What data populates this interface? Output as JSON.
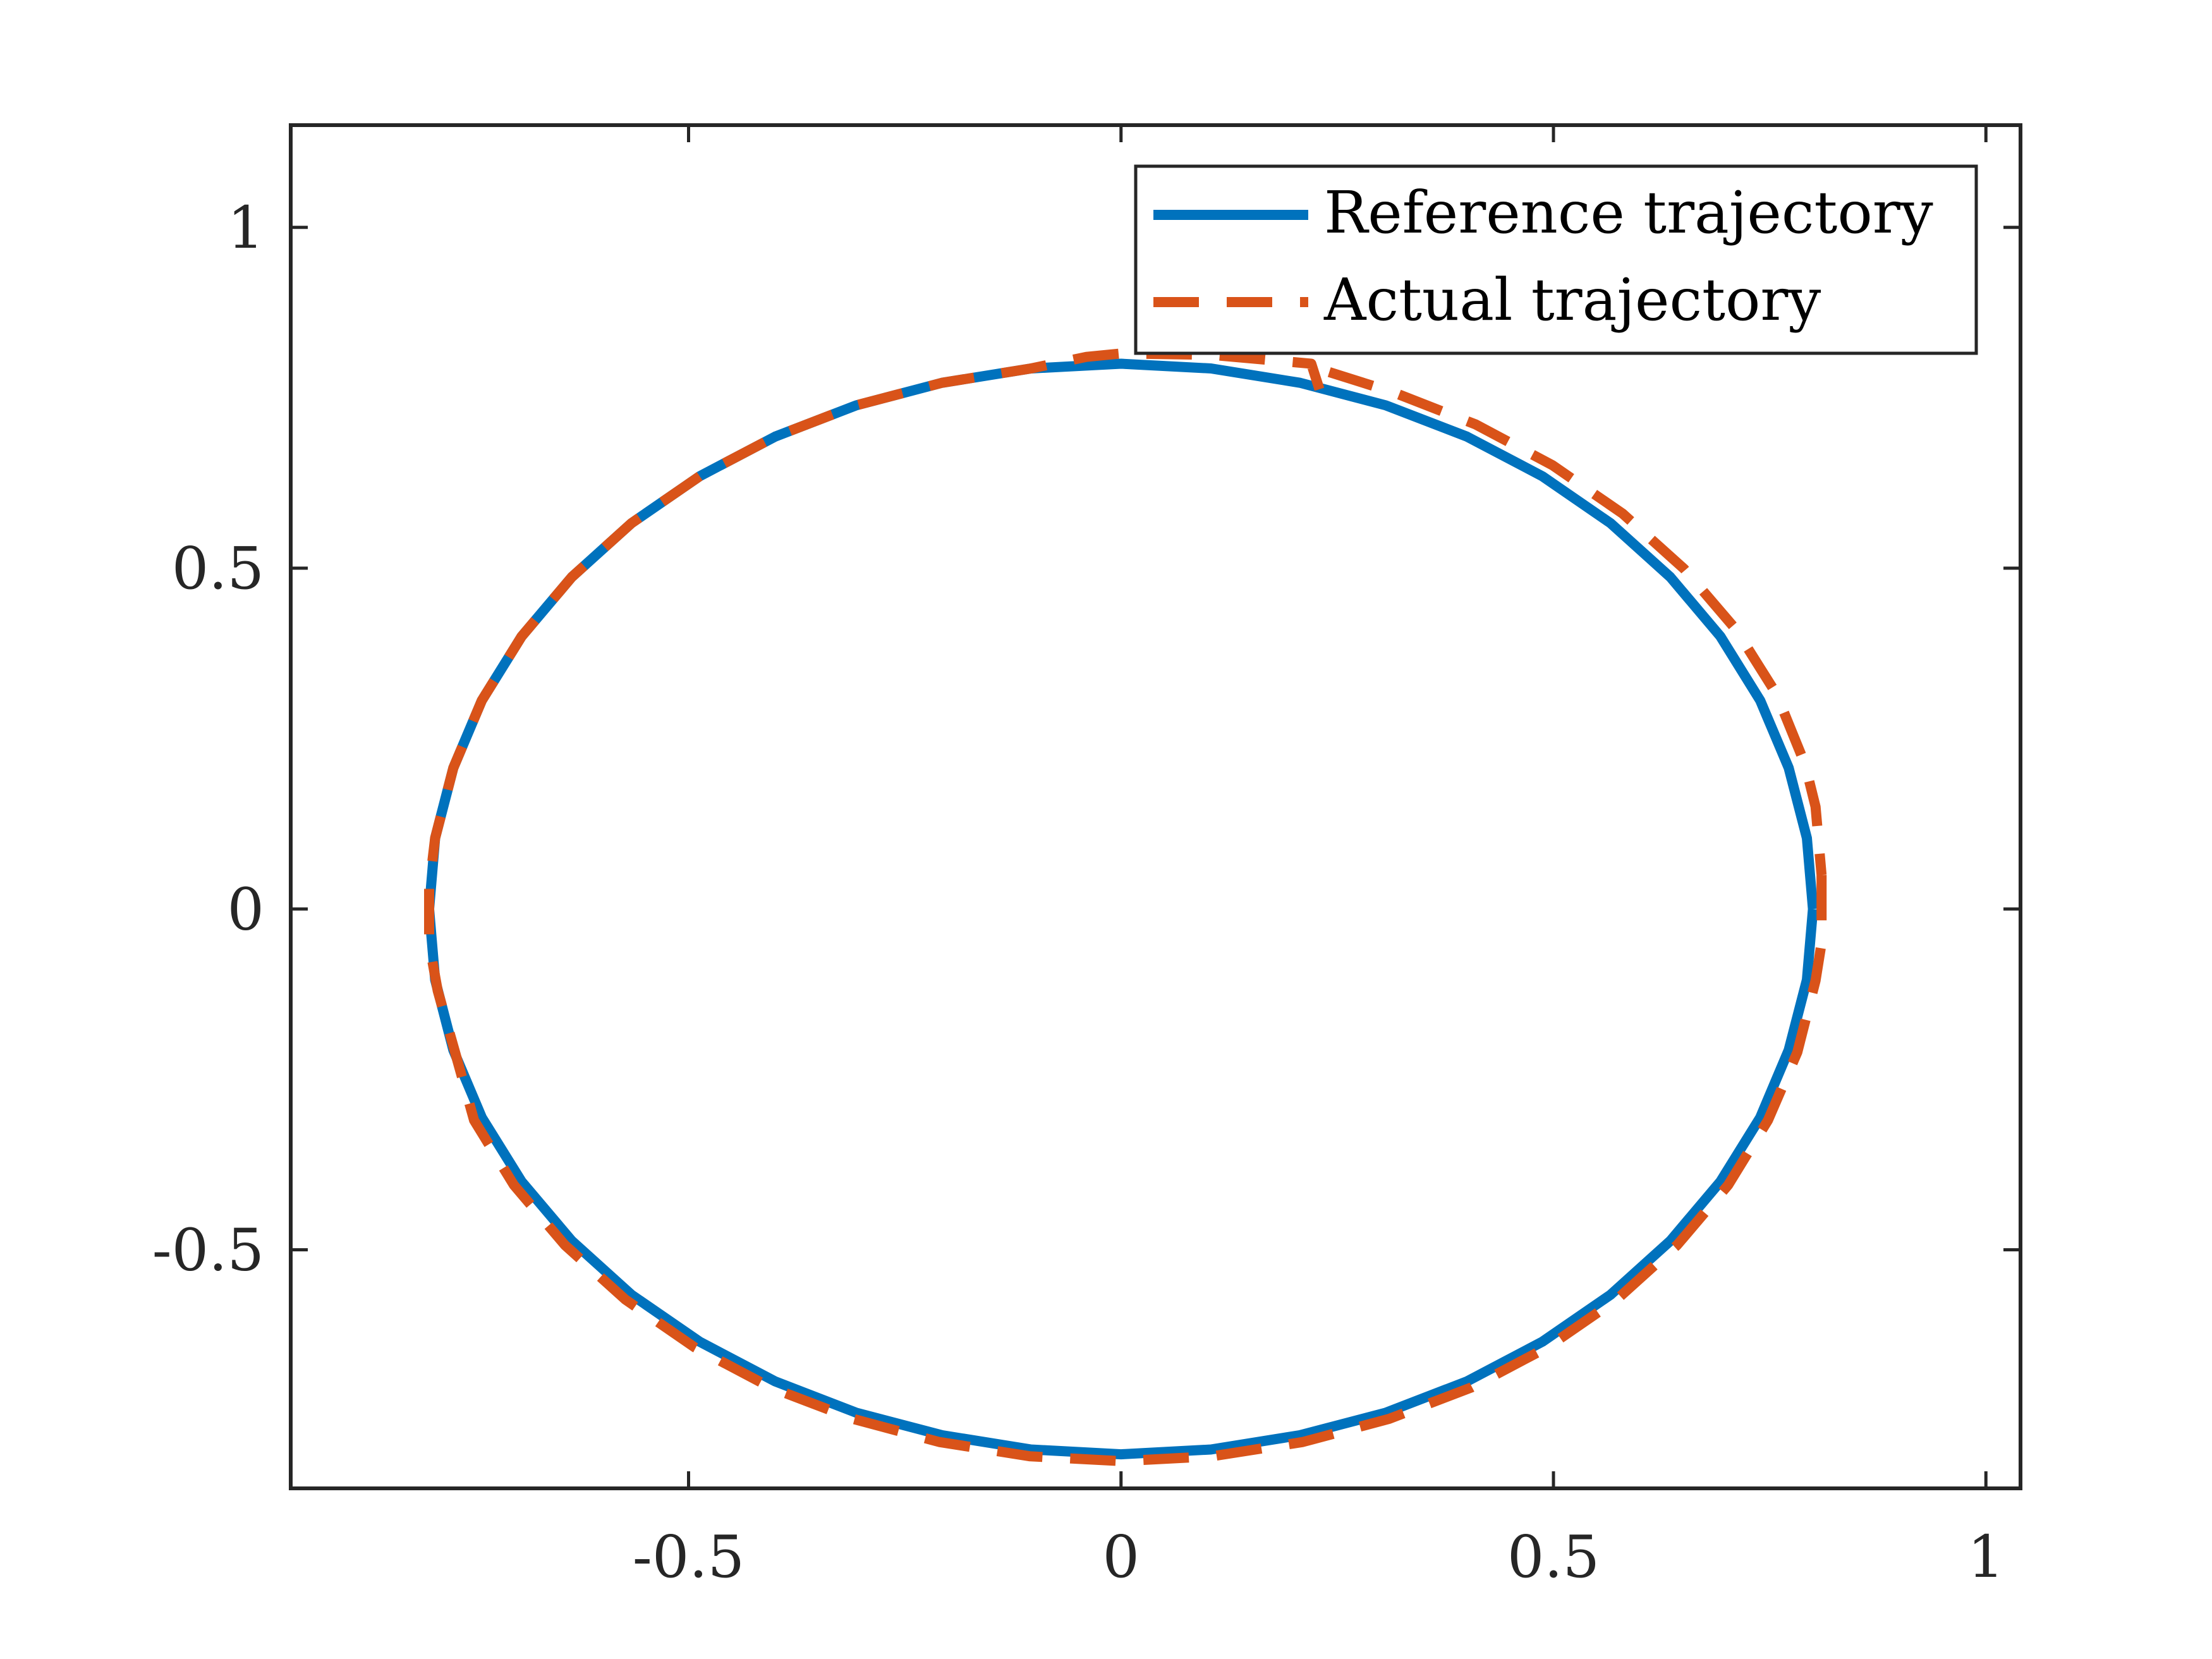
{
  "chart_data": {
    "type": "line",
    "title": "",
    "xlabel": "",
    "ylabel": "",
    "xlim": [
      -0.96,
      1.04
    ],
    "ylim": [
      -0.85,
      1.15
    ],
    "xticks": [
      -0.5,
      0,
      0.5,
      1
    ],
    "xtick_labels": [
      "-0.5",
      "0",
      "0.5",
      "1"
    ],
    "yticks": [
      -0.5,
      0,
      0.5,
      1
    ],
    "ytick_labels": [
      "-0.5",
      "0",
      "0.5",
      "1"
    ],
    "grid": false,
    "box": true,
    "legend_position": "top-right",
    "series": [
      {
        "name": "Reference trajectory",
        "color": "#0072BD",
        "style": "solid",
        "points": [
          [
            0.8,
            0.0
          ],
          [
            0.793,
            -0.104
          ],
          [
            0.772,
            -0.207
          ],
          [
            0.739,
            -0.306
          ],
          [
            0.693,
            -0.4
          ],
          [
            0.635,
            -0.487
          ],
          [
            0.566,
            -0.566
          ],
          [
            0.487,
            -0.635
          ],
          [
            0.4,
            -0.693
          ],
          [
            0.306,
            -0.739
          ],
          [
            0.207,
            -0.772
          ],
          [
            0.104,
            -0.793
          ],
          [
            0.0,
            -0.8
          ],
          [
            -0.104,
            -0.793
          ],
          [
            -0.207,
            -0.772
          ],
          [
            -0.306,
            -0.739
          ],
          [
            -0.4,
            -0.693
          ],
          [
            -0.487,
            -0.635
          ],
          [
            -0.566,
            -0.566
          ],
          [
            -0.635,
            -0.487
          ],
          [
            -0.693,
            -0.4
          ],
          [
            -0.739,
            -0.306
          ],
          [
            -0.772,
            -0.207
          ],
          [
            -0.793,
            -0.104
          ],
          [
            -0.8,
            0.0
          ],
          [
            -0.793,
            0.104
          ],
          [
            -0.772,
            0.207
          ],
          [
            -0.739,
            0.306
          ],
          [
            -0.693,
            0.4
          ],
          [
            -0.635,
            0.487
          ],
          [
            -0.566,
            0.566
          ],
          [
            -0.487,
            0.635
          ],
          [
            -0.4,
            0.693
          ],
          [
            -0.306,
            0.739
          ],
          [
            -0.207,
            0.772
          ],
          [
            -0.104,
            0.793
          ],
          [
            0.0,
            0.8
          ],
          [
            0.104,
            0.793
          ],
          [
            0.207,
            0.772
          ],
          [
            0.306,
            0.739
          ],
          [
            0.4,
            0.693
          ],
          [
            0.487,
            0.635
          ],
          [
            0.566,
            0.566
          ],
          [
            0.635,
            0.487
          ],
          [
            0.693,
            0.4
          ],
          [
            0.739,
            0.306
          ],
          [
            0.772,
            0.207
          ],
          [
            0.793,
            0.104
          ],
          [
            0.8,
            0.0
          ]
        ]
      },
      {
        "name": "Actual trajectory",
        "color": "#D95319",
        "style": "dashed",
        "points": [
          [
            0.81,
            0.05
          ],
          [
            0.81,
            -0.05
          ],
          [
            0.803,
            -0.105
          ],
          [
            0.782,
            -0.21
          ],
          [
            0.748,
            -0.31
          ],
          [
            0.702,
            -0.405
          ],
          [
            0.643,
            -0.493
          ],
          [
            0.573,
            -0.573
          ],
          [
            0.493,
            -0.643
          ],
          [
            0.405,
            -0.702
          ],
          [
            0.31,
            -0.748
          ],
          [
            0.21,
            -0.782
          ],
          [
            0.105,
            -0.803
          ],
          [
            0.0,
            -0.81
          ],
          [
            -0.105,
            -0.803
          ],
          [
            -0.21,
            -0.782
          ],
          [
            -0.31,
            -0.748
          ],
          [
            -0.405,
            -0.702
          ],
          [
            -0.493,
            -0.643
          ],
          [
            -0.573,
            -0.573
          ],
          [
            -0.643,
            -0.493
          ],
          [
            -0.702,
            -0.405
          ],
          [
            -0.748,
            -0.31
          ],
          [
            -0.77,
            -0.21
          ],
          [
            -0.79,
            -0.12
          ],
          [
            -0.8,
            -0.05
          ],
          [
            -0.8,
            0.03
          ],
          [
            -0.793,
            0.104
          ],
          [
            -0.772,
            0.207
          ],
          [
            -0.739,
            0.306
          ],
          [
            -0.693,
            0.4
          ],
          [
            -0.635,
            0.487
          ],
          [
            -0.566,
            0.566
          ],
          [
            -0.487,
            0.635
          ],
          [
            -0.4,
            0.693
          ],
          [
            -0.306,
            0.739
          ],
          [
            -0.207,
            0.772
          ],
          [
            -0.104,
            0.793
          ],
          [
            -0.04,
            0.81
          ],
          [
            0.0,
            0.815
          ],
          [
            0.105,
            0.813
          ],
          [
            0.22,
            0.8
          ],
          [
            0.23,
            0.76
          ],
          [
            0.235,
            0.79
          ],
          [
            0.315,
            0.758
          ],
          [
            0.41,
            0.711
          ],
          [
            0.499,
            0.651
          ],
          [
            0.58,
            0.58
          ],
          [
            0.651,
            0.499
          ],
          [
            0.711,
            0.41
          ],
          [
            0.758,
            0.315
          ],
          [
            0.791,
            0.212
          ],
          [
            0.803,
            0.15
          ],
          [
            0.81,
            0.05
          ]
        ]
      }
    ]
  }
}
